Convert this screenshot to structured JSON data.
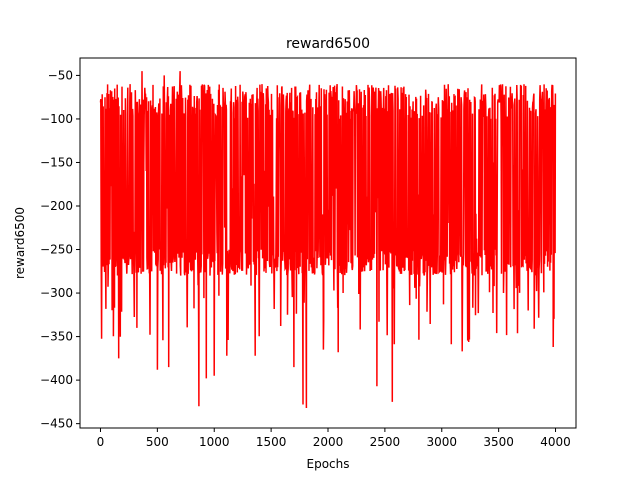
{
  "chart_data": {
    "type": "line",
    "title": "reward6500",
    "xlabel": "Epochs",
    "ylabel": "reward6500",
    "xlim": [
      -180,
      4180
    ],
    "ylim": [
      -455,
      -30
    ],
    "x_ticks": [
      0,
      500,
      1000,
      1500,
      2000,
      2500,
      3000,
      3500,
      4000
    ],
    "y_ticks": [
      -50,
      -100,
      -150,
      -200,
      -250,
      -300,
      -350,
      -400,
      -450
    ],
    "grid": false,
    "legend": "none",
    "series": [
      {
        "color": "#ff0000",
        "x_start": 0,
        "x_end": 4000,
        "points": 4001,
        "values_sampled_every_50_epochs": [
          -200,
          -190,
          -175,
          -215,
          -160,
          -205,
          -230,
          -150,
          -190,
          -180,
          -210,
          -170,
          -200,
          -185,
          -195,
          -160,
          -220,
          -175,
          -205,
          -180,
          -190,
          -200,
          -170,
          -210,
          -185,
          -195,
          -175,
          -205,
          -190,
          -180,
          -200,
          -165,
          -215,
          -185,
          -195,
          -175,
          -205,
          -180,
          -195,
          -170,
          -210,
          -190,
          -180,
          -200,
          -175,
          -195,
          -185,
          -205,
          -170,
          -190,
          -200,
          -180,
          -195,
          -175,
          -205,
          -185,
          -190,
          -180,
          -200,
          -170,
          -195,
          -185,
          -205,
          -175,
          -190,
          -180,
          -200,
          -185,
          -195,
          -170,
          -205,
          -180,
          -190,
          -200,
          -175,
          -195,
          -185,
          -205,
          -180,
          -190,
          -200
        ],
        "typical_band": [
          -250,
          -100
        ],
        "peaks": [
          {
            "x": 40,
            "y": -75
          },
          {
            "x": 125,
            "y": -65
          },
          {
            "x": 260,
            "y": -60
          },
          {
            "x": 365,
            "y": -45
          },
          {
            "x": 560,
            "y": -50
          },
          {
            "x": 700,
            "y": -45
          },
          {
            "x": 930,
            "y": -60
          },
          {
            "x": 1150,
            "y": -65
          },
          {
            "x": 1420,
            "y": -60
          },
          {
            "x": 1570,
            "y": -75
          },
          {
            "x": 1790,
            "y": -55
          },
          {
            "x": 2080,
            "y": -60
          },
          {
            "x": 2430,
            "y": -75
          },
          {
            "x": 2650,
            "y": -70
          },
          {
            "x": 2970,
            "y": -75
          },
          {
            "x": 3170,
            "y": -75
          },
          {
            "x": 3620,
            "y": -80
          },
          {
            "x": 3910,
            "y": -100
          }
        ],
        "troughs": [
          {
            "x": 10,
            "y": -335
          },
          {
            "x": 160,
            "y": -375
          },
          {
            "x": 320,
            "y": -340
          },
          {
            "x": 435,
            "y": -385
          },
          {
            "x": 500,
            "y": -388
          },
          {
            "x": 600,
            "y": -385
          },
          {
            "x": 865,
            "y": -430
          },
          {
            "x": 930,
            "y": -398
          },
          {
            "x": 1000,
            "y": -395
          },
          {
            "x": 1110,
            "y": -372
          },
          {
            "x": 1360,
            "y": -372
          },
          {
            "x": 1700,
            "y": -385
          },
          {
            "x": 1780,
            "y": -428
          },
          {
            "x": 1810,
            "y": -432
          },
          {
            "x": 1960,
            "y": -365
          },
          {
            "x": 2090,
            "y": -368
          },
          {
            "x": 2430,
            "y": -407
          },
          {
            "x": 2565,
            "y": -425
          },
          {
            "x": 2870,
            "y": -389
          },
          {
            "x": 3180,
            "y": -367
          },
          {
            "x": 3460,
            "y": -383
          },
          {
            "x": 3760,
            "y": -320
          },
          {
            "x": 3980,
            "y": -362
          }
        ]
      }
    ]
  }
}
